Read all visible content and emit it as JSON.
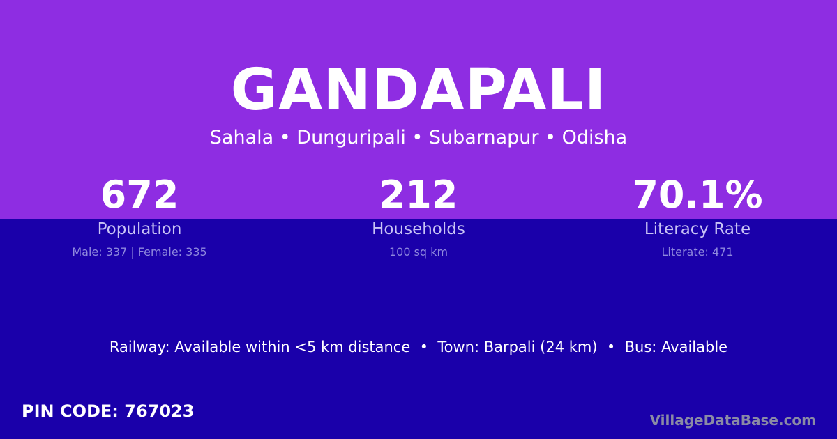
{
  "colors": {
    "top": "#8e2de2",
    "bottom": "#1a00aa"
  },
  "title": "GANDAPALI",
  "subtitle": "Sahala • Dunguripali • Subarnapur • Odisha",
  "stats": [
    {
      "value": "672",
      "label": "Population",
      "detail": "Male: 337 | Female: 335"
    },
    {
      "value": "212",
      "label": "Households",
      "detail": "100 sq km"
    },
    {
      "value": "70.1%",
      "label": "Literacy Rate",
      "detail": "Literate: 471"
    }
  ],
  "facts": "Railway: Available within <5 km distance  •  Town: Barpali (24 km)  •  Bus: Available",
  "pin": "PIN CODE: 767023",
  "brand": "VillageDataBase.com"
}
